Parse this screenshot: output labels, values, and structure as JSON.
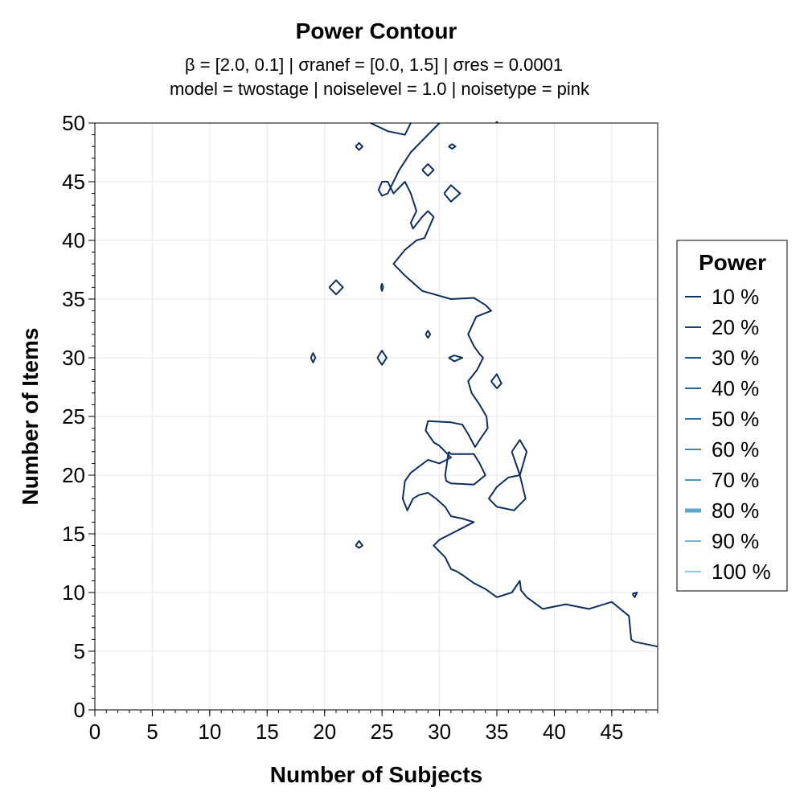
{
  "chart_data": {
    "type": "contour",
    "title": "Power Contour",
    "subtitle_line1": "β = [2.0, 0.1]   |   σranef = [0.0, 1.5]   |   σres = 0.0001",
    "subtitle_line2": "model = twostage   |   noiselevel = 1.0   |   noisetype = pink",
    "xlabel": "Number of Subjects",
    "ylabel": "Number of Items",
    "xlim": [
      0,
      49
    ],
    "ylim": [
      0,
      50
    ],
    "xticks": [
      0,
      5,
      10,
      15,
      20,
      25,
      30,
      35,
      40,
      45
    ],
    "yticks": [
      0,
      5,
      10,
      15,
      20,
      25,
      30,
      35,
      40,
      45,
      50
    ],
    "grid": true,
    "legend": {
      "title": "Power",
      "placement": "right",
      "entries": [
        {
          "label": "10 %",
          "color": "#0d2f5e"
        },
        {
          "label": "20 %",
          "color": "#14427a"
        },
        {
          "label": "30 %",
          "color": "#1a5289"
        },
        {
          "label": "40 %",
          "color": "#236396"
        },
        {
          "label": "50 %",
          "color": "#2d74a6"
        },
        {
          "label": "60 %",
          "color": "#3a86b5"
        },
        {
          "label": "70 %",
          "color": "#4a98c4"
        },
        {
          "label": "80 %",
          "color": "#5aa8d0"
        },
        {
          "label": "90 %",
          "color": "#6fb8dc"
        },
        {
          "label": "100 %",
          "color": "#8cc8e8"
        }
      ]
    },
    "contours": [
      {
        "level": "10 %",
        "color": "#0d2f5e",
        "paths": [
          [
            [
              24,
              50
            ],
            [
              25.5,
              49.3
            ],
            [
              27,
              49
            ],
            [
              27.5,
              50
            ]
          ],
          [
            [
              30,
              50
            ],
            [
              28.5,
              48.5
            ],
            [
              27.5,
              47.5
            ],
            [
              26.5,
              46
            ],
            [
              26,
              45
            ],
            [
              25.5,
              44
            ],
            [
              25,
              43.8
            ],
            [
              24.7,
              44.3
            ],
            [
              25,
              45
            ],
            [
              25.5,
              45
            ],
            [
              26,
              44
            ],
            [
              27,
              45
            ],
            [
              27.5,
              44
            ],
            [
              28,
              42.5
            ],
            [
              27.5,
              41.5
            ],
            [
              27.7,
              41
            ],
            [
              28.5,
              42
            ],
            [
              29,
              42.5
            ],
            [
              29.5,
              42
            ],
            [
              28.7,
              40.2
            ],
            [
              28,
              40
            ],
            [
              27,
              39.2
            ],
            [
              26,
              38
            ],
            [
              27,
              37
            ],
            [
              28.5,
              35.7
            ],
            [
              31,
              35
            ],
            [
              33,
              35.1
            ],
            [
              34,
              34.5
            ],
            [
              34.5,
              34
            ],
            [
              33.2,
              33.5
            ],
            [
              32.5,
              32
            ],
            [
              33,
              31
            ],
            [
              33.5,
              30.3
            ],
            [
              33.8,
              30
            ],
            [
              33.3,
              29
            ],
            [
              32.5,
              28
            ],
            [
              32.8,
              27
            ],
            [
              33.5,
              26
            ],
            [
              34.1,
              25
            ],
            [
              34.2,
              24
            ],
            [
              33.5,
              23
            ],
            [
              33.1,
              22.4
            ],
            [
              32.5,
              23.5
            ],
            [
              32,
              24.3
            ],
            [
              31,
              24.5
            ],
            [
              29,
              24.6
            ],
            [
              28.8,
              23.8
            ],
            [
              29.5,
              22.8
            ],
            [
              30,
              22.5
            ],
            [
              31,
              21.5
            ],
            [
              30,
              21
            ],
            [
              29,
              21.3
            ],
            [
              27.5,
              20.2
            ],
            [
              27,
              19.5
            ],
            [
              26.8,
              18
            ],
            [
              27.2,
              17
            ],
            [
              27.7,
              18
            ],
            [
              28.2,
              18.3
            ],
            [
              29,
              18.5
            ],
            [
              29.7,
              18
            ],
            [
              30.5,
              17.3
            ],
            [
              31,
              16.5
            ],
            [
              32,
              16.3
            ],
            [
              33,
              16
            ],
            [
              32,
              15.5
            ],
            [
              31,
              15
            ],
            [
              30,
              14.5
            ],
            [
              29.5,
              14
            ],
            [
              30.5,
              13
            ],
            [
              31,
              12
            ],
            [
              31.5,
              11.8
            ],
            [
              32,
              11.5
            ],
            [
              33,
              10.8
            ],
            [
              34,
              10.3
            ],
            [
              35,
              9.6
            ],
            [
              36.3,
              10
            ],
            [
              37,
              11
            ],
            [
              37.1,
              10.2
            ],
            [
              37.6,
              9.6
            ],
            [
              39,
              8.6
            ],
            [
              41,
              9
            ],
            [
              43,
              8.6
            ],
            [
              45,
              9.2
            ],
            [
              46.5,
              8
            ],
            [
              46.7,
              6
            ],
            [
              47,
              5.8
            ],
            [
              49,
              5.4
            ]
          ],
          [
            [
              34.9,
              50.1
            ],
            [
              35.1,
              50.05
            ]
          ],
          [
            [
              22.7,
              48
            ],
            [
              23,
              48.3
            ],
            [
              23.3,
              48
            ],
            [
              23,
              47.7
            ],
            [
              22.7,
              48
            ]
          ],
          [
            [
              30.8,
              48
            ],
            [
              31.1,
              48.2
            ],
            [
              31.4,
              48
            ],
            [
              31.1,
              47.8
            ],
            [
              30.8,
              48
            ]
          ],
          [
            [
              28.5,
              46
            ],
            [
              29,
              46.5
            ],
            [
              29.5,
              46
            ],
            [
              29,
              45.5
            ],
            [
              28.5,
              46
            ]
          ],
          [
            [
              30.4,
              44
            ],
            [
              31,
              44.7
            ],
            [
              31.8,
              44
            ],
            [
              31,
              43.3
            ],
            [
              30.4,
              44
            ]
          ],
          [
            [
              20.4,
              36
            ],
            [
              21,
              36.6
            ],
            [
              21.6,
              36
            ],
            [
              21,
              35.4
            ],
            [
              20.4,
              36
            ]
          ],
          [
            [
              24.9,
              36
            ],
            [
              25,
              36.3
            ],
            [
              25.1,
              36
            ],
            [
              25,
              35.7
            ],
            [
              24.9,
              36
            ]
          ],
          [
            [
              28.8,
              32
            ],
            [
              29,
              32.3
            ],
            [
              29.2,
              32
            ],
            [
              29,
              31.7
            ],
            [
              28.8,
              32
            ]
          ],
          [
            [
              18.8,
              30
            ],
            [
              19,
              30.4
            ],
            [
              19.2,
              30
            ],
            [
              19,
              29.6
            ],
            [
              18.8,
              30
            ]
          ],
          [
            [
              24.6,
              30
            ],
            [
              25,
              30.6
            ],
            [
              25.4,
              30
            ],
            [
              25,
              29.4
            ],
            [
              24.6,
              30
            ]
          ],
          [
            [
              30.8,
              30
            ],
            [
              31.3,
              30.2
            ],
            [
              32,
              30
            ],
            [
              31.3,
              29.7
            ],
            [
              30.8,
              30
            ]
          ],
          [
            [
              34.5,
              28
            ],
            [
              35,
              28.6
            ],
            [
              35.4,
              27.8
            ],
            [
              35,
              27.4
            ],
            [
              34.5,
              28
            ]
          ],
          [
            [
              36.3,
              22
            ],
            [
              37,
              23
            ],
            [
              37.6,
              22
            ],
            [
              37,
              20
            ],
            [
              36.3,
              22
            ]
          ],
          [
            [
              30.8,
              22
            ],
            [
              31,
              21.8
            ],
            [
              32,
              21.8
            ],
            [
              33,
              21.8
            ],
            [
              33.5,
              21
            ],
            [
              34,
              20
            ],
            [
              33,
              19.2
            ],
            [
              31,
              19.3
            ],
            [
              30.6,
              19.5
            ],
            [
              30.5,
              20
            ],
            [
              30.8,
              22
            ]
          ],
          [
            [
              37,
              20
            ],
            [
              36,
              19.8
            ],
            [
              35,
              19
            ],
            [
              34.3,
              18
            ],
            [
              35,
              17.3
            ],
            [
              36.5,
              17
            ],
            [
              37.5,
              18
            ],
            [
              37,
              20
            ]
          ],
          [
            [
              22.7,
              14
            ],
            [
              23,
              14.4
            ],
            [
              23.3,
              14
            ],
            [
              23,
              13.8
            ],
            [
              22.7,
              14
            ]
          ],
          [
            [
              46.8,
              9.9
            ],
            [
              47.2,
              10
            ],
            [
              47,
              9.6
            ],
            [
              46.8,
              9.9
            ]
          ]
        ]
      }
    ]
  }
}
